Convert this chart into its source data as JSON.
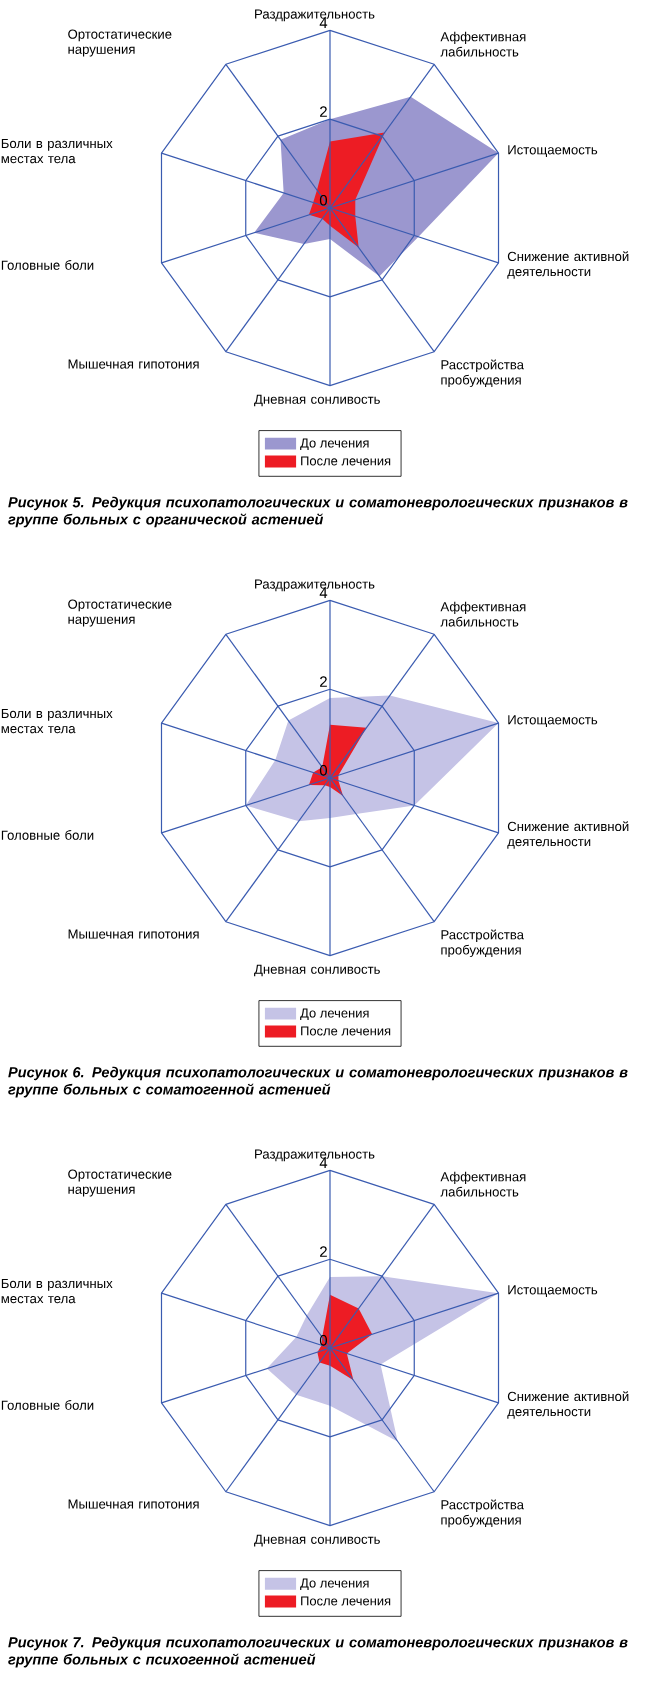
{
  "chart_data": [
    {
      "type": "radar",
      "title": "Рисунок 5. Редукция психопатологических и соматоневрологических признаков в группе больных с органической астенией",
      "categories": [
        "Раздражительность",
        "Аффективная лабильность",
        "Истощаемость",
        "Снижение активной деятельности",
        "Расстройства пробуждения",
        "Дневная сонливость",
        "Мышечная гипотония",
        "Головные боли",
        "Боли в различных местах тела",
        "Ортостатические нарушения"
      ],
      "ylim": [
        0,
        4
      ],
      "yticks": [
        0,
        2,
        4
      ],
      "grid": true,
      "legend": "bottom",
      "series": [
        {
          "name": "До лечения",
          "color": "#9b97cf",
          "values": [
            2.0,
            3.1,
            4.0,
            2.1,
            1.9,
            0.7,
            1.0,
            1.8,
            1.1,
            1.9
          ]
        },
        {
          "name": "После лечения",
          "color": "#ed1c24",
          "values": [
            1.5,
            2.1,
            0.6,
            0.6,
            1.1,
            0.4,
            0.3,
            0.5,
            0.4,
            0.5
          ]
        }
      ]
    },
    {
      "type": "radar",
      "title": "Рисунок 6. Редукция психопатологических и соматоневрологических признаков в группе больных с соматогенной астенией",
      "categories": [
        "Раздражительность",
        "Аффективная лабильность",
        "Истощаемость",
        "Снижение активной деятельности",
        "Расстройства пробуждения",
        "Дневная сонливость",
        "Мышечная гипотония",
        "Головные боли",
        "Боли в различных местах тела",
        "Ортостатические нарушения"
      ],
      "ylim": [
        0,
        4
      ],
      "yticks": [
        0,
        2,
        4
      ],
      "grid": true,
      "legend": "bottom",
      "series": [
        {
          "name": "До лечения",
          "color": "#c5c3e6",
          "values": [
            1.8,
            2.3,
            4.0,
            2.0,
            1.0,
            0.9,
            1.2,
            2.0,
            1.3,
            1.6
          ]
        },
        {
          "name": "После лечения",
          "color": "#ed1c24",
          "values": [
            1.2,
            1.4,
            0.2,
            0.2,
            0.5,
            0.2,
            0.2,
            0.5,
            0.4,
            0.3
          ]
        }
      ]
    },
    {
      "type": "radar",
      "title": "Рисунок 7. Редукция психопатологических и соматоневрологических признаков в группе больных с психогенной астенией",
      "categories": [
        "Раздражительность",
        "Аффективная лабильность",
        "Истощаемость",
        "Снижение активной деятельности",
        "Расстройства пробуждения",
        "Дневная сонливость",
        "Мышечная гипотония",
        "Головные боли",
        "Боли в различных местах тела",
        "Ортостатические нарушения"
      ],
      "ylim": [
        0,
        4
      ],
      "yticks": [
        0,
        2,
        4
      ],
      "grid": true,
      "legend": "bottom",
      "series": [
        {
          "name": "До лечения",
          "color": "#c5c3e6",
          "values": [
            1.6,
            2.0,
            4.0,
            1.2,
            2.6,
            1.3,
            1.3,
            1.5,
            0.8,
            0.9
          ]
        },
        {
          "name": "После лечения",
          "color": "#ed1c24",
          "values": [
            1.2,
            1.1,
            1.0,
            0.4,
            0.9,
            0.4,
            0.4,
            0.3,
            0.2,
            0.3
          ]
        }
      ]
    }
  ]
}
